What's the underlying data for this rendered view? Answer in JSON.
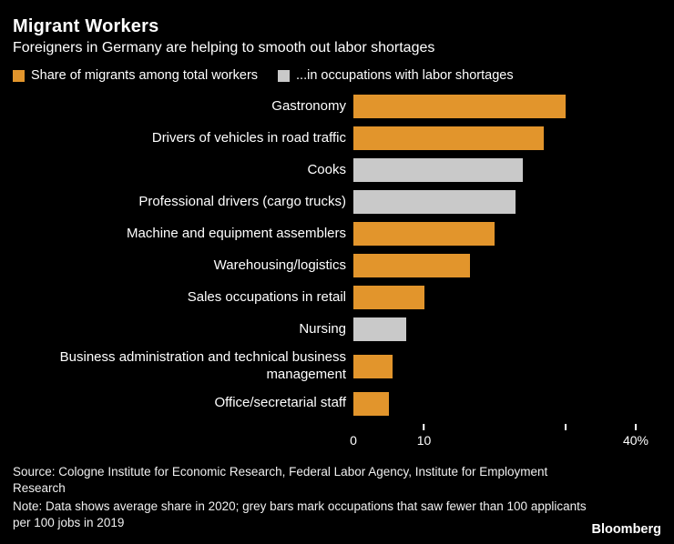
{
  "header": {
    "title": "Migrant Workers",
    "subtitle": "Foreigners in Germany are helping to smooth out labor shortages"
  },
  "colors": {
    "orange": "#e2952c",
    "grey": "#c9c9c9",
    "background": "#000000",
    "text": "#ffffff"
  },
  "legend": [
    {
      "label": "Share of migrants among total workers",
      "color_key": "orange"
    },
    {
      "label": "...in occupations with labor shortages",
      "color_key": "grey"
    }
  ],
  "chart_data": {
    "type": "bar",
    "orientation": "horizontal",
    "title": "Migrant Workers",
    "subtitle": "Foreigners in Germany are helping to smooth out labor shortages",
    "xlabel": "",
    "ylabel": "",
    "xlim": [
      0,
      40
    ],
    "grid": false,
    "legend_position": "top",
    "categories": [
      "Gastronomy",
      "Drivers of vehicles in road traffic",
      "Cooks",
      "Professional drivers (cargo trucks)",
      "Machine and equipment assemblers",
      "Warehousing/logistics",
      "Sales occupations in retail",
      "Nursing",
      "Business administration and technical business management",
      "Office/secretarial staff"
    ],
    "values": [
      30,
      27,
      24,
      23,
      20,
      16.5,
      10,
      7.5,
      5.5,
      5
    ],
    "bar_colors": [
      "orange",
      "orange",
      "grey",
      "grey",
      "orange",
      "orange",
      "orange",
      "grey",
      "orange",
      "orange"
    ],
    "ticks": [
      {
        "value": 0,
        "label": "0",
        "mark": false
      },
      {
        "value": 10,
        "label": "10",
        "mark": true
      },
      {
        "value": 30,
        "label": "",
        "mark": true
      },
      {
        "value": 40,
        "label": "40%",
        "mark": true
      }
    ]
  },
  "footer": {
    "source": "Source: Cologne Institute for Economic Research, Federal Labor Agency, Institute for Employment Research",
    "note": "Note: Data shows average share in 2020; grey bars mark occupations that saw fewer than 100 applicants per 100 jobs in 2019",
    "brand": "Bloomberg"
  }
}
